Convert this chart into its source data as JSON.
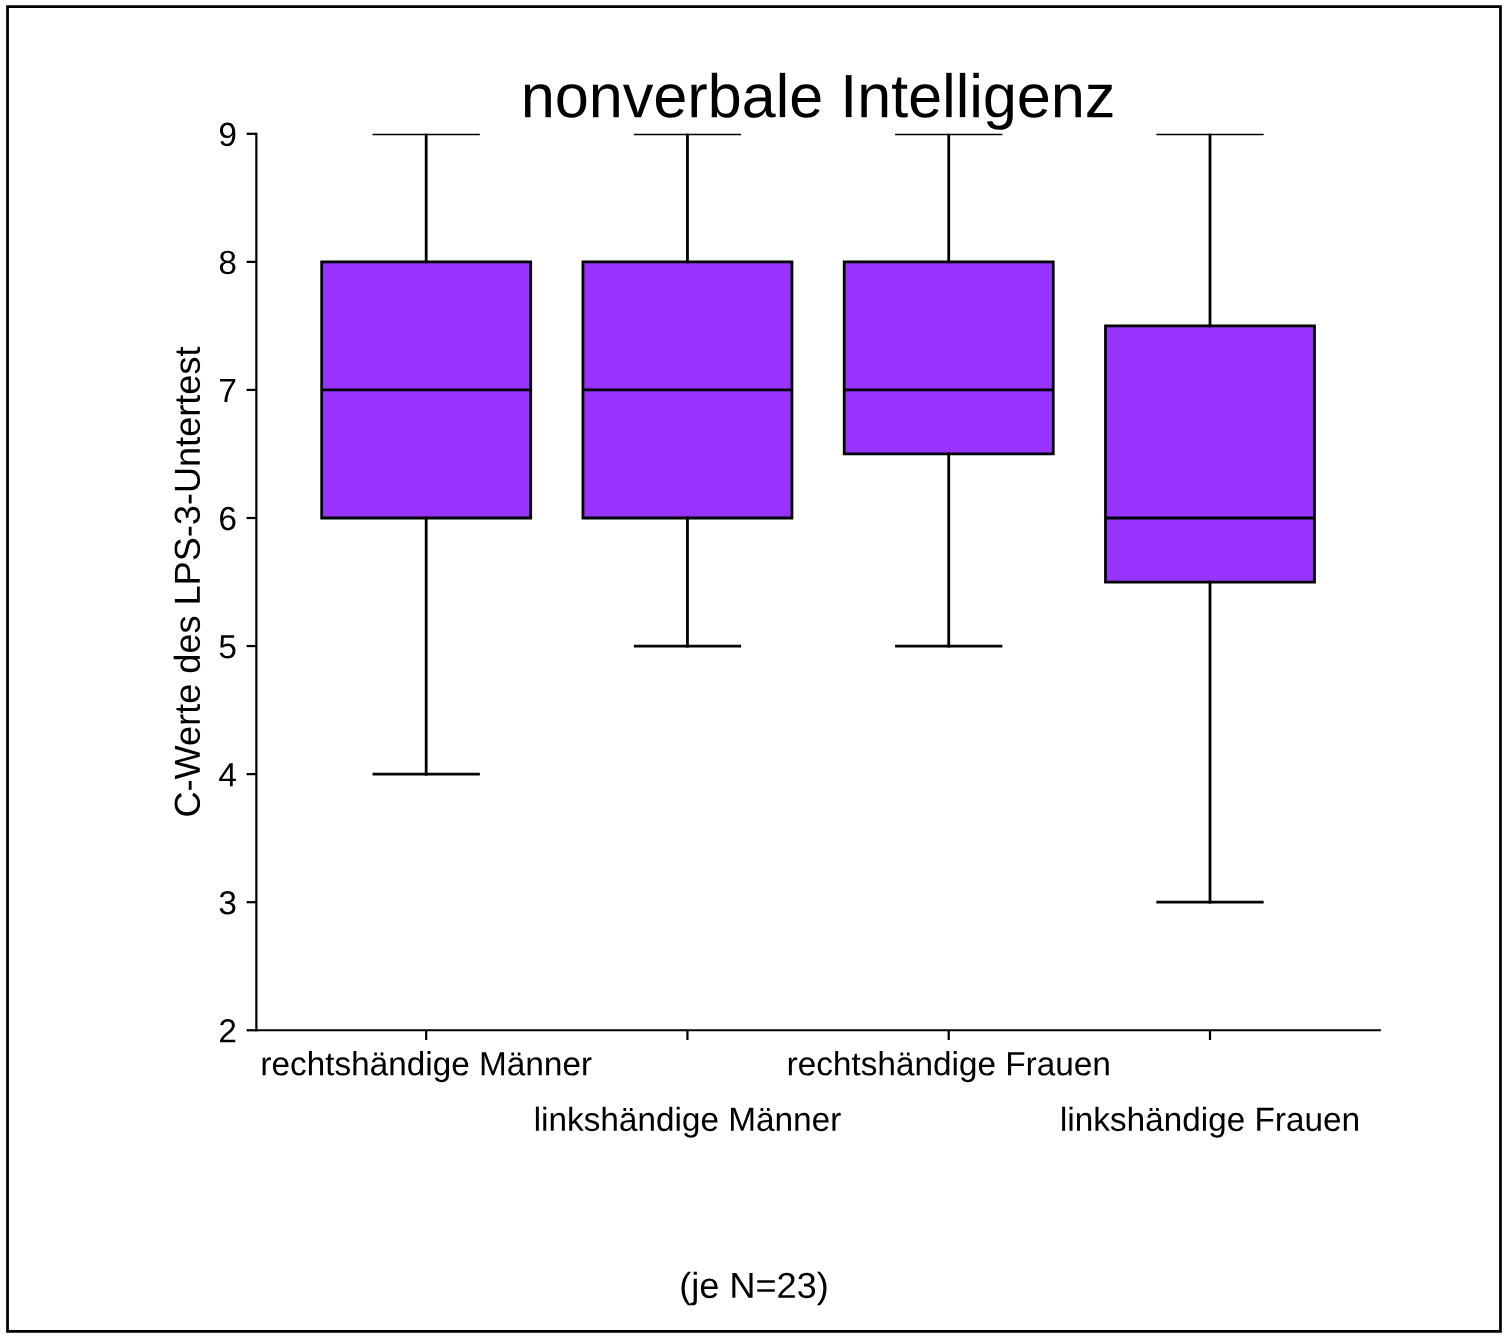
{
  "chart_data": {
    "type": "box",
    "title": "nonverbale Intelligenz",
    "ylabel": "C-Werte des LPS-3-Untertest",
    "categories": [
      "rechtshändige Männer",
      "linkshändige Männer",
      "rechtshändige Frauen",
      "linkshändige Frauen"
    ],
    "series": [
      {
        "color": "#9933ff",
        "boxes": [
          {
            "low": 4,
            "q1": 6,
            "median": 7,
            "q3": 8,
            "high": 9
          },
          {
            "low": 5,
            "q1": 6,
            "median": 7,
            "q3": 8,
            "high": 9
          },
          {
            "low": 5,
            "q1": 6.5,
            "median": 7,
            "q3": 8,
            "high": 9
          },
          {
            "low": 3,
            "q1": 5.5,
            "median": 6,
            "q3": 7.5,
            "high": 9
          }
        ]
      }
    ],
    "ylim": [
      2,
      9
    ],
    "yticks": [
      2,
      3,
      4,
      5,
      6,
      7,
      8,
      9
    ],
    "grid": false,
    "annotations": [
      "(je N=23)"
    ]
  }
}
